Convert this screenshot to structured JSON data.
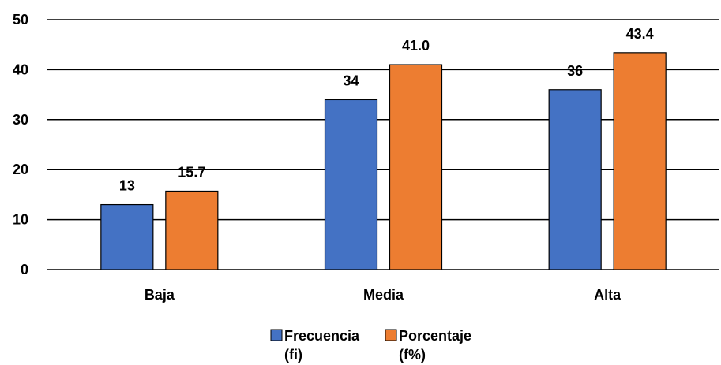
{
  "chart_data": {
    "type": "bar",
    "categories": [
      "Baja",
      "Media",
      "Alta"
    ],
    "series": [
      {
        "name": "Frecuencia (fi)",
        "name_lines": [
          "Frecuencia",
          "(fi)"
        ],
        "values": [
          13,
          34,
          36
        ],
        "labels": [
          "13",
          "34",
          "36"
        ],
        "color": "#4472C4"
      },
      {
        "name": "Porcentaje (f%)",
        "name_lines": [
          "Porcentaje",
          "(f%)"
        ],
        "values": [
          15.7,
          41.0,
          43.4
        ],
        "labels": [
          "15.7",
          "41.0",
          "43.4"
        ],
        "color": "#ED7D31"
      }
    ],
    "yticks": [
      "0",
      "10",
      "20",
      "30",
      "40",
      "50"
    ],
    "ylim": [
      0,
      50
    ],
    "grid": true,
    "legend": "bottom"
  }
}
